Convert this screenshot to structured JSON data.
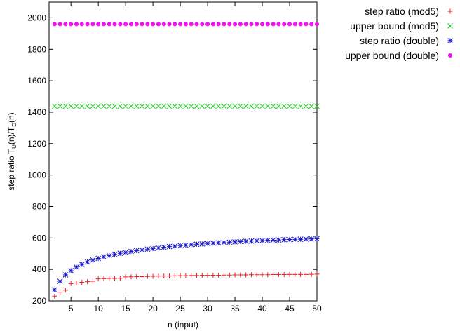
{
  "chart_data": {
    "type": "scatter",
    "xlabel": "n (input)",
    "ylabel": "step ratio T",
    "ylabel_sub1": "U",
    "ylabel_mid": "(n)/T",
    "ylabel_sub2": "D",
    "ylabel_end": "(n)",
    "xlim": [
      1,
      50
    ],
    "ylim": [
      200,
      2100
    ],
    "xticks": [
      5,
      10,
      15,
      20,
      25,
      30,
      35,
      40,
      45,
      50
    ],
    "yticks": [
      200,
      400,
      600,
      800,
      1000,
      1200,
      1400,
      1600,
      1800,
      2000
    ],
    "grid": false,
    "legend_position": "top-right",
    "series": [
      {
        "name": "step ratio (mod5)",
        "marker": "plus",
        "color": "#e8202a",
        "x": [
          2,
          3,
          4,
          5,
          6,
          7,
          8,
          9,
          10,
          11,
          12,
          13,
          14,
          15,
          16,
          17,
          18,
          19,
          20,
          21,
          22,
          23,
          24,
          25,
          26,
          27,
          28,
          29,
          30,
          31,
          32,
          33,
          34,
          35,
          36,
          37,
          38,
          39,
          40,
          41,
          42,
          43,
          44,
          45,
          46,
          47,
          48,
          49,
          50
        ],
        "y": [
          230,
          255,
          268,
          310,
          314,
          318,
          322,
          325,
          340,
          341,
          342,
          343,
          344,
          352,
          353,
          354,
          354,
          355,
          356,
          357,
          358,
          358,
          359,
          360,
          360,
          361,
          361,
          362,
          362,
          363,
          363,
          364,
          364,
          365,
          365,
          365,
          366,
          366,
          366,
          366,
          367,
          367,
          367,
          368,
          368,
          368,
          368,
          369,
          370
        ]
      },
      {
        "name": "upper bound (mod5)",
        "marker": "x",
        "color": "#22cc22",
        "x": [
          2,
          3,
          4,
          5,
          6,
          7,
          8,
          9,
          10,
          11,
          12,
          13,
          14,
          15,
          16,
          17,
          18,
          19,
          20,
          21,
          22,
          23,
          24,
          25,
          26,
          27,
          28,
          29,
          30,
          31,
          32,
          33,
          34,
          35,
          36,
          37,
          38,
          39,
          40,
          41,
          42,
          43,
          44,
          45,
          46,
          47,
          48,
          49,
          50
        ],
        "y": [
          1438,
          1438,
          1438,
          1438,
          1438,
          1438,
          1438,
          1438,
          1438,
          1438,
          1438,
          1438,
          1438,
          1438,
          1438,
          1438,
          1438,
          1438,
          1438,
          1438,
          1438,
          1438,
          1438,
          1438,
          1438,
          1438,
          1438,
          1438,
          1438,
          1438,
          1438,
          1438,
          1438,
          1438,
          1438,
          1438,
          1438,
          1438,
          1438,
          1438,
          1438,
          1438,
          1438,
          1438,
          1438,
          1438,
          1438,
          1438,
          1438
        ]
      },
      {
        "name": "step ratio (double)",
        "marker": "star",
        "color": "#1a1acc",
        "x": [
          2,
          3,
          4,
          5,
          6,
          7,
          8,
          9,
          10,
          11,
          12,
          13,
          14,
          15,
          16,
          17,
          18,
          19,
          20,
          21,
          22,
          23,
          24,
          25,
          26,
          27,
          28,
          29,
          30,
          31,
          32,
          33,
          34,
          35,
          36,
          37,
          38,
          39,
          40,
          41,
          42,
          43,
          44,
          45,
          46,
          47,
          48,
          49,
          50
        ],
        "y": [
          270,
          325,
          365,
          392,
          415,
          432,
          448,
          460,
          470,
          480,
          488,
          495,
          502,
          508,
          514,
          519,
          524,
          529,
          533,
          537,
          541,
          545,
          548,
          551,
          554,
          557,
          560,
          562,
          565,
          567,
          569,
          571,
          573,
          575,
          577,
          579,
          580,
          582,
          583,
          585,
          586,
          587,
          589,
          590,
          591,
          592,
          593,
          594,
          595
        ]
      },
      {
        "name": "upper bound (double)",
        "marker": "circle",
        "color": "#ee11ee",
        "x": [
          2,
          3,
          4,
          5,
          6,
          7,
          8,
          9,
          10,
          11,
          12,
          13,
          14,
          15,
          16,
          17,
          18,
          19,
          20,
          21,
          22,
          23,
          24,
          25,
          26,
          27,
          28,
          29,
          30,
          31,
          32,
          33,
          34,
          35,
          36,
          37,
          38,
          39,
          40,
          41,
          42,
          43,
          44,
          45,
          46,
          47,
          48,
          49,
          50
        ],
        "y": [
          1960,
          1960,
          1960,
          1960,
          1960,
          1960,
          1960,
          1960,
          1960,
          1960,
          1960,
          1960,
          1960,
          1960,
          1960,
          1960,
          1960,
          1960,
          1960,
          1960,
          1960,
          1960,
          1960,
          1960,
          1960,
          1960,
          1960,
          1960,
          1960,
          1960,
          1960,
          1960,
          1960,
          1960,
          1960,
          1960,
          1960,
          1960,
          1960,
          1960,
          1960,
          1960,
          1960,
          1960,
          1960,
          1960,
          1960,
          1960,
          1960
        ]
      }
    ]
  }
}
